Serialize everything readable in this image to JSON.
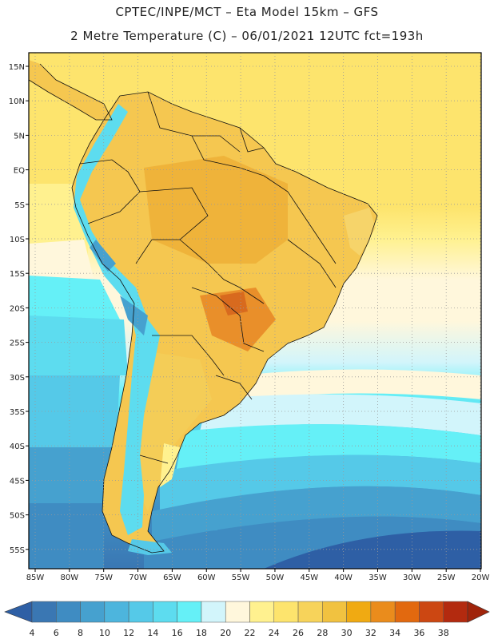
{
  "header": {
    "title_line1": "CPTEC/INPE/MCT –  Eta Model 15km – GFS",
    "title_line2": "2 Metre Temperature (C) – 06/01/2021 12UTC fct=193h"
  },
  "lat_labels": [
    "15N",
    "10N",
    "5N",
    "EQ",
    "5S",
    "10S",
    "15S",
    "20S",
    "25S",
    "30S",
    "35S",
    "40S",
    "45S",
    "50S",
    "55S"
  ],
  "lon_labels": [
    "85W",
    "80W",
    "75W",
    "70W",
    "65W",
    "60W",
    "55W",
    "50W",
    "45W",
    "40W",
    "35W",
    "30W",
    "25W",
    "20W"
  ],
  "colorbar": {
    "labels": [
      "4",
      "6",
      "8",
      "10",
      "12",
      "14",
      "16",
      "18",
      "20",
      "22",
      "24",
      "26",
      "28",
      "30",
      "32",
      "34",
      "36",
      "38"
    ],
    "colors": [
      "#3a77b3",
      "#3f8cc2",
      "#46a1cf",
      "#4db5dd",
      "#55c9e8",
      "#5ddcef",
      "#65f0f7",
      "#d2f5fb",
      "#fff7dc",
      "#fff18f",
      "#fde46d",
      "#f7d35a",
      "#f1c240",
      "#f0aa12",
      "#ea8c1c",
      "#e2690f",
      "#cc4712",
      "#b32a0f"
    ],
    "low_color": "#2e5fa5",
    "high_color": "#a0240b"
  }
}
